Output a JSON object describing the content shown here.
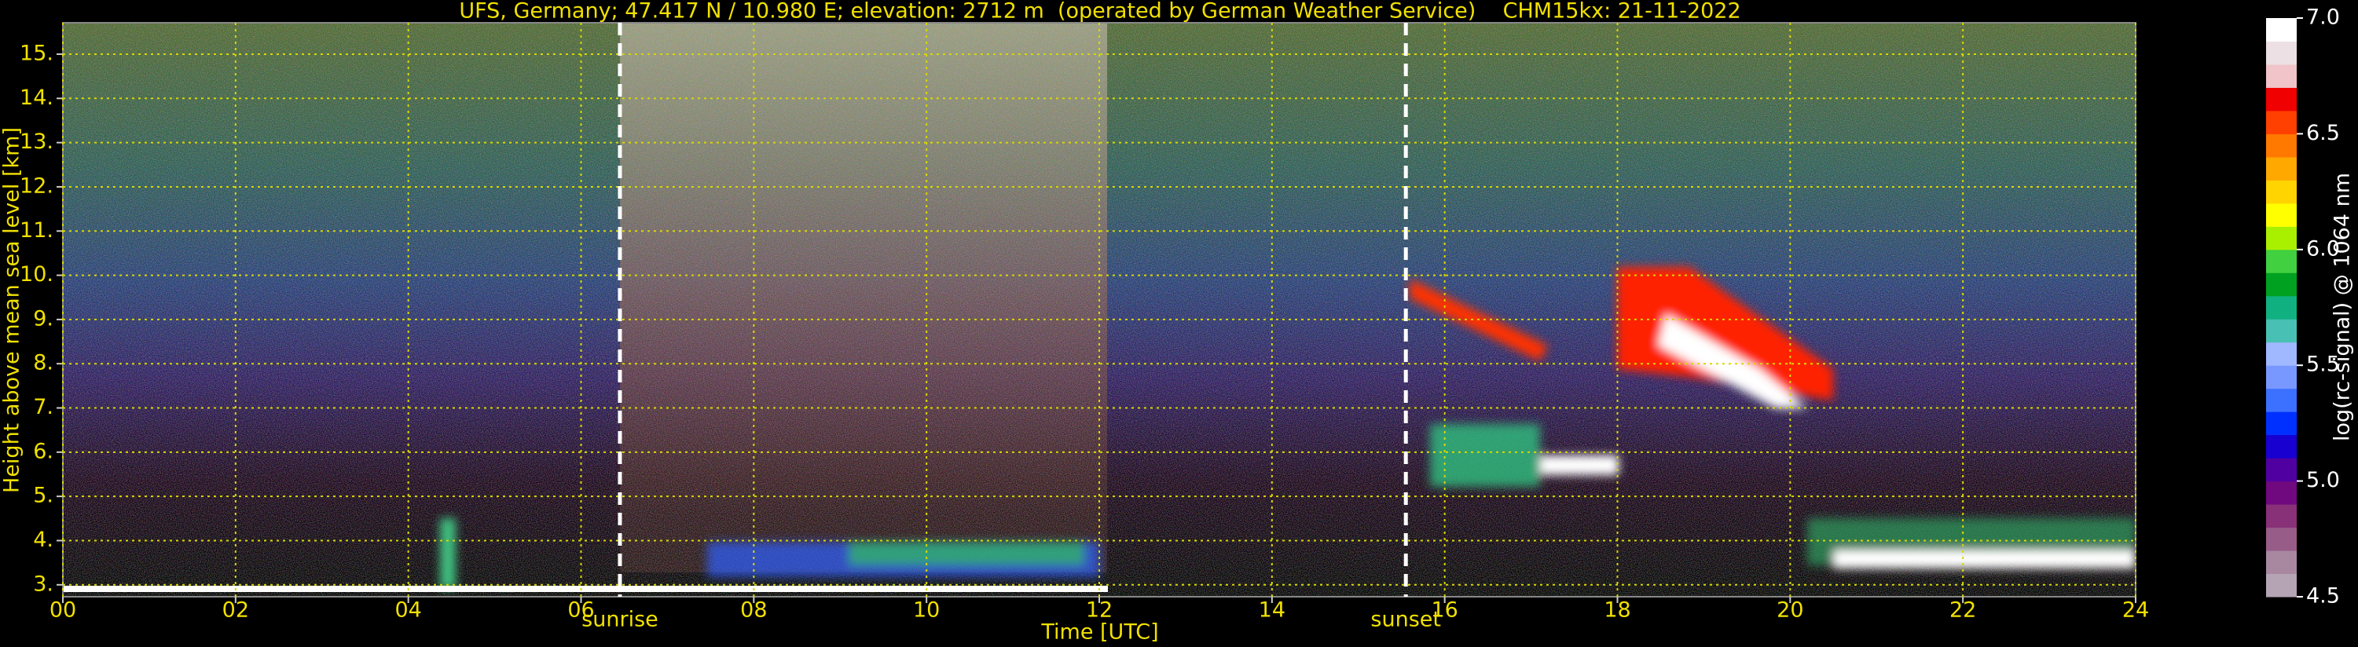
{
  "chart_data": {
    "type": "heatmap",
    "title": "UFS, Germany; 47.417 N / 10.980 E; elevation: 2712 m  (operated by German Weather Service)    CHM15kx: 21-11-2022",
    "xlabel": "Time [UTC]",
    "ylabel": "Height above mean sea level [km]",
    "xlim": [
      0,
      24
    ],
    "xticks": [
      {
        "value": 0,
        "label": "00"
      },
      {
        "value": 2,
        "label": "02"
      },
      {
        "value": 4,
        "label": "04"
      },
      {
        "value": 6,
        "label": "06"
      },
      {
        "value": 8,
        "label": "08"
      },
      10,
      12,
      14,
      16,
      18,
      20,
      22,
      24
    ],
    "ylim": [
      2.73,
      15.71
    ],
    "yticks": [
      {
        "value": 3,
        "label": "3."
      },
      {
        "value": 4,
        "label": "4."
      },
      {
        "value": 5,
        "label": "5."
      },
      {
        "value": 6,
        "label": "6."
      },
      {
        "value": 7,
        "label": "7."
      },
      {
        "value": 8,
        "label": "8."
      },
      {
        "value": 9,
        "label": "9."
      },
      {
        "value": 10,
        "label": "10."
      },
      {
        "value": 11,
        "label": "11."
      },
      {
        "value": 12,
        "label": "12."
      },
      {
        "value": 13,
        "label": "13."
      },
      {
        "value": 14,
        "label": "14."
      },
      {
        "value": 15,
        "label": "15."
      }
    ],
    "grid": true,
    "grid_color": "#d8d800",
    "annotations": [
      {
        "text": "sunrise",
        "x": 6.45
      },
      {
        "text": "sunset",
        "x": 15.55
      }
    ],
    "colorbar": {
      "label": "log(rc-signal) @ 1064 nm",
      "lim": [
        4.5,
        7.0
      ],
      "ticks": [
        4.5,
        {
          "value": 5,
          "label": "5.0"
        },
        5.5,
        {
          "value": 6,
          "label": "6.0"
        },
        6.5,
        {
          "value": 7,
          "label": "7.0"
        }
      ],
      "colors": [
        "#b4a4b4",
        "#a888a0",
        "#985c88",
        "#883078",
        "#700880",
        "#5000a0",
        "#1800d0",
        "#0030ff",
        "#3c70ff",
        "#7898ff",
        "#a0b8ff",
        "#48c0b4",
        "#10b080",
        "#00a020",
        "#40d040",
        "#a8f000",
        "#ffff00",
        "#ffd400",
        "#ffa800",
        "#ff7800",
        "#ff4000",
        "#f00000",
        "#f0c4c8",
        "#ece0e4",
        "#ffffff"
      ]
    }
  }
}
